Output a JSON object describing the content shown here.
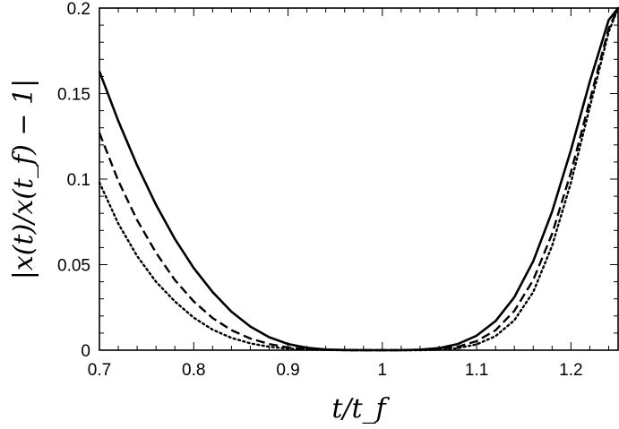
{
  "chart_data": {
    "type": "line",
    "title": "",
    "xlabel": "t/t_f",
    "ylabel": "|x(t)/x(t_f) − 1|",
    "xlim": [
      0.7,
      1.25
    ],
    "ylim": [
      0,
      0.2
    ],
    "xticks": [
      0.7,
      0.8,
      0.9,
      1.0,
      1.1,
      1.2
    ],
    "xtick_labels": [
      "0.7",
      "0.8",
      "0.9",
      "1",
      "1.1",
      "1.2"
    ],
    "yticks": [
      0,
      0.05,
      0.1,
      0.15,
      0.2
    ],
    "ytick_labels": [
      "0",
      "0.05",
      "0.1",
      "0.15",
      "0.2"
    ],
    "grid": false,
    "legend": "none",
    "series": [
      {
        "style": "solid",
        "color": "#000000",
        "x": [
          0.7,
          0.72,
          0.74,
          0.76,
          0.78,
          0.8,
          0.82,
          0.84,
          0.86,
          0.88,
          0.9,
          0.92,
          0.94,
          0.96,
          0.98,
          1.0,
          1.02,
          1.04,
          1.06,
          1.08,
          1.1,
          1.12,
          1.14,
          1.16,
          1.18,
          1.2,
          1.22,
          1.24,
          1.25
        ],
        "y": [
          0.163,
          0.134,
          0.108,
          0.085,
          0.065,
          0.048,
          0.034,
          0.0225,
          0.0138,
          0.0076,
          0.0036,
          0.0014,
          0.0004,
          0.0001,
          0.0,
          0.0,
          0.0,
          0.0003,
          0.0012,
          0.0036,
          0.0085,
          0.017,
          0.031,
          0.052,
          0.081,
          0.117,
          0.157,
          0.193,
          0.2
        ]
      },
      {
        "style": "dashed",
        "color": "#000000",
        "x": [
          0.7,
          0.72,
          0.74,
          0.76,
          0.78,
          0.8,
          0.82,
          0.84,
          0.86,
          0.88,
          0.9,
          0.92,
          0.94,
          0.96,
          0.98,
          1.0,
          1.02,
          1.04,
          1.06,
          1.08,
          1.1,
          1.12,
          1.14,
          1.16,
          1.18,
          1.2,
          1.22,
          1.24,
          1.25
        ],
        "y": [
          0.127,
          0.099,
          0.076,
          0.057,
          0.041,
          0.0285,
          0.0188,
          0.0117,
          0.0068,
          0.0036,
          0.0016,
          0.0006,
          0.0002,
          0.0,
          0.0,
          0.0,
          0.0,
          0.0001,
          0.0006,
          0.002,
          0.0053,
          0.0116,
          0.023,
          0.041,
          0.068,
          0.104,
          0.146,
          0.188,
          0.2
        ]
      },
      {
        "style": "dotted",
        "color": "#000000",
        "x": [
          0.7,
          0.72,
          0.74,
          0.76,
          0.78,
          0.8,
          0.82,
          0.84,
          0.86,
          0.88,
          0.9,
          0.92,
          0.94,
          0.96,
          0.98,
          1.0,
          1.02,
          1.04,
          1.06,
          1.08,
          1.1,
          1.12,
          1.14,
          1.16,
          1.18,
          1.2,
          1.22,
          1.24,
          1.25
        ],
        "y": [
          0.098,
          0.074,
          0.055,
          0.04,
          0.0285,
          0.019,
          0.012,
          0.0072,
          0.004,
          0.002,
          0.0009,
          0.0003,
          0.0001,
          0.0,
          0.0,
          0.0,
          0.0,
          0.0,
          0.0003,
          0.0012,
          0.0034,
          0.0082,
          0.0175,
          0.034,
          0.061,
          0.098,
          0.142,
          0.186,
          0.2
        ]
      }
    ]
  }
}
